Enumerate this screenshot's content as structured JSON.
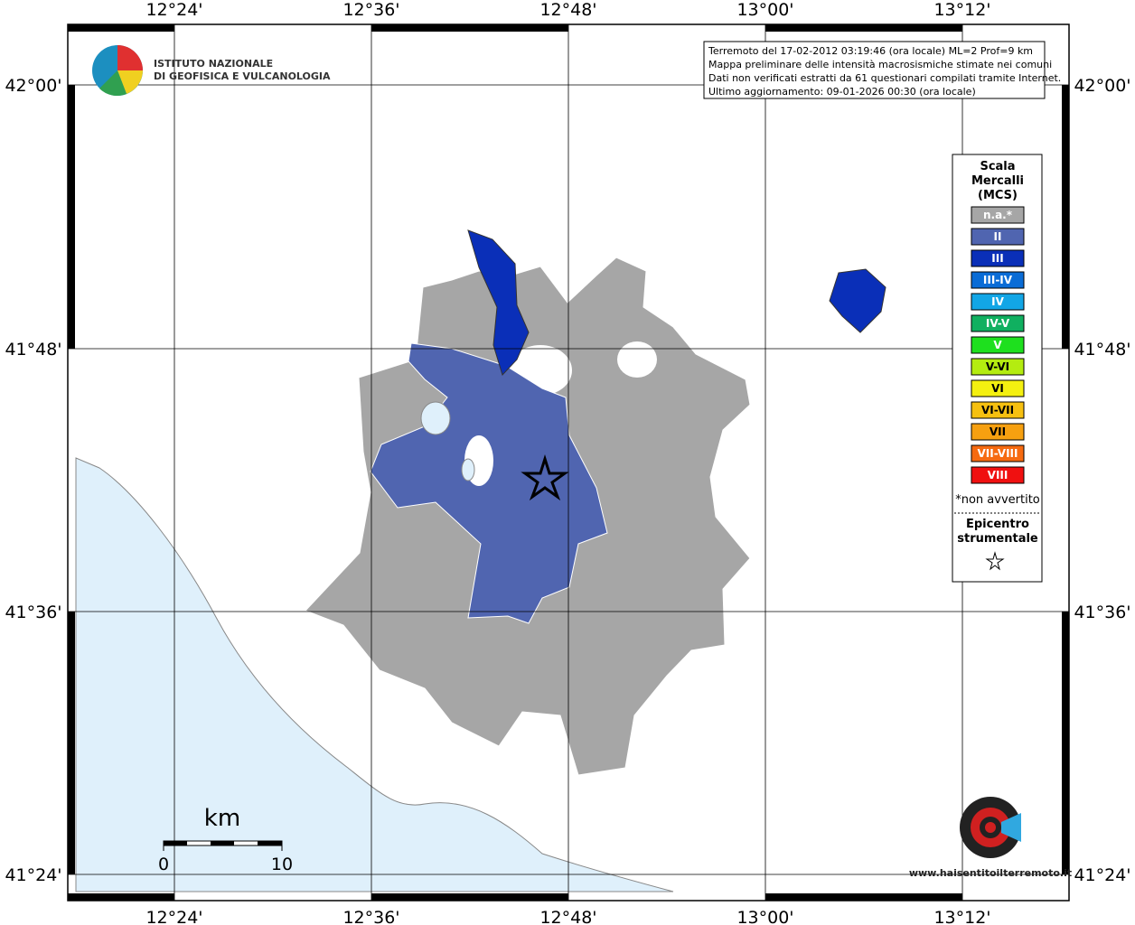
{
  "map": {
    "lon_labels": [
      "12°24'",
      "12°36'",
      "12°48'",
      "13°00'",
      "13°12'"
    ],
    "lat_labels": [
      "42°00'",
      "41°48'",
      "41°36'",
      "41°24'"
    ],
    "info": [
      "Terremoto del 17-02-2012 03:19:46 (ora locale) ML=2 Prof=9 km",
      "Mappa preliminare delle intensità macrosismiche stimate nei comuni",
      "Dati non verificati estratti da 61 questionari compilati tramite Internet.",
      "Ultimo aggiornamento: 09-01-2026 00:30 (ora locale)"
    ],
    "logo": [
      "ISTITUTO NAZIONALE",
      "DI GEOFISICA E VULCANOLOGIA"
    ],
    "legend": {
      "title": [
        "Scala",
        "Mercalli",
        "(MCS)"
      ],
      "items": [
        {
          "label": "n.a.*",
          "color": "#a6a6a6"
        },
        {
          "label": "II",
          "color": "#5065b0"
        },
        {
          "label": "III",
          "color": "#0a2fb8"
        },
        {
          "label": "III-IV",
          "color": "#0a6cd6"
        },
        {
          "label": "IV",
          "color": "#12a6e6"
        },
        {
          "label": "IV-V",
          "color": "#10b060"
        },
        {
          "label": "V",
          "color": "#1ee01e"
        },
        {
          "label": "V-VI",
          "color": "#b4ec10"
        },
        {
          "label": "VI",
          "color": "#f4f010"
        },
        {
          "label": "VI-VII",
          "color": "#f6c010"
        },
        {
          "label": "VII",
          "color": "#f6a010"
        },
        {
          "label": "VII-VIII",
          "color": "#f66a10"
        },
        {
          "label": "VIII",
          "color": "#f01010"
        }
      ],
      "note": "*non avvertito",
      "epicenter": [
        "Epicentro",
        "strumentale"
      ]
    },
    "scale": {
      "unit": "km",
      "ticks": [
        "0",
        "10"
      ]
    },
    "site": "www.haisentitoilterremoto.it"
  }
}
